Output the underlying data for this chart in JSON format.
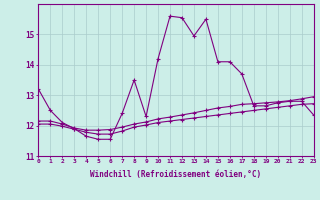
{
  "xlabel": "Windchill (Refroidissement éolien,°C)",
  "background_color": "#cceee8",
  "line_color": "#800080",
  "grid_color": "#aacccc",
  "x_values": [
    0,
    1,
    2,
    3,
    4,
    5,
    6,
    7,
    8,
    9,
    10,
    11,
    12,
    13,
    14,
    15,
    16,
    17,
    18,
    19,
    20,
    21,
    22,
    23
  ],
  "series1": [
    13.2,
    12.5,
    12.1,
    11.9,
    11.65,
    11.55,
    11.55,
    12.4,
    13.5,
    12.3,
    14.2,
    15.6,
    15.55,
    14.95,
    15.5,
    14.1,
    14.1,
    13.7,
    12.65,
    12.65,
    12.75,
    12.8,
    12.8,
    12.35
  ],
  "series2": [
    12.15,
    12.15,
    12.05,
    11.92,
    11.85,
    11.85,
    11.87,
    11.95,
    12.05,
    12.12,
    12.22,
    12.28,
    12.35,
    12.42,
    12.5,
    12.58,
    12.63,
    12.7,
    12.72,
    12.75,
    12.78,
    12.82,
    12.88,
    12.95
  ],
  "series3": [
    12.05,
    12.05,
    11.98,
    11.88,
    11.78,
    11.72,
    11.72,
    11.82,
    11.95,
    12.02,
    12.1,
    12.15,
    12.2,
    12.25,
    12.3,
    12.35,
    12.4,
    12.45,
    12.5,
    12.55,
    12.6,
    12.65,
    12.7,
    12.72
  ],
  "ylim": [
    11.0,
    16.0
  ],
  "xlim": [
    0,
    23
  ],
  "yticks": [
    11,
    12,
    13,
    14,
    15
  ],
  "xticks": [
    0,
    1,
    2,
    3,
    4,
    5,
    6,
    7,
    8,
    9,
    10,
    11,
    12,
    13,
    14,
    15,
    16,
    17,
    18,
    19,
    20,
    21,
    22,
    23
  ]
}
